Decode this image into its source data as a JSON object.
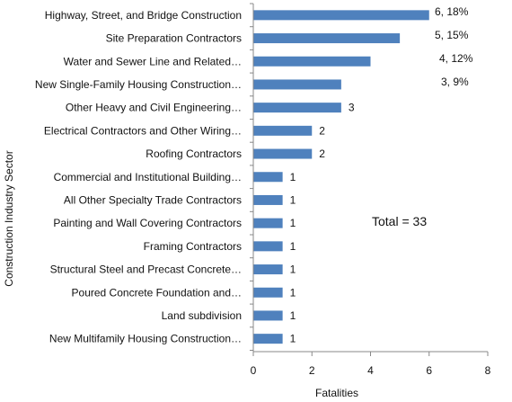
{
  "chart_data": {
    "type": "bar",
    "orientation": "horizontal",
    "categories": [
      "Highway, Street, and Bridge Construction",
      "Site Preparation Contractors",
      "Water and Sewer Line and Related…",
      "New Single-Family Housing Construction…",
      "Other Heavy and Civil Engineering…",
      "Electrical Contractors and Other Wiring…",
      "Roofing Contractors",
      "Commercial and Institutional Building…",
      "All Other Specialty Trade Contractors",
      "Painting and Wall Covering Contractors",
      "Framing Contractors",
      "Structural Steel and Precast Concrete…",
      "Poured Concrete Foundation and…",
      "Land subdivision",
      "New Multifamily Housing Construction…"
    ],
    "values": [
      6,
      5,
      4,
      3,
      3,
      2,
      2,
      1,
      1,
      1,
      1,
      1,
      1,
      1,
      1
    ],
    "data_labels": [
      "6, 18%",
      "5, 15%",
      "4, 12%",
      "3, 9%",
      "3",
      "2",
      "2",
      "1",
      "1",
      "1",
      "1",
      "1",
      "1",
      "1",
      "1"
    ],
    "xlabel": "Fatalities",
    "ylabel": "Construction Industry Sector",
    "xlim": [
      0,
      8
    ],
    "xticks": [
      "0",
      "2",
      "4",
      "6",
      "8"
    ],
    "annotation": "Total = 33",
    "bar_color": "#4f81bd",
    "grid": false
  }
}
